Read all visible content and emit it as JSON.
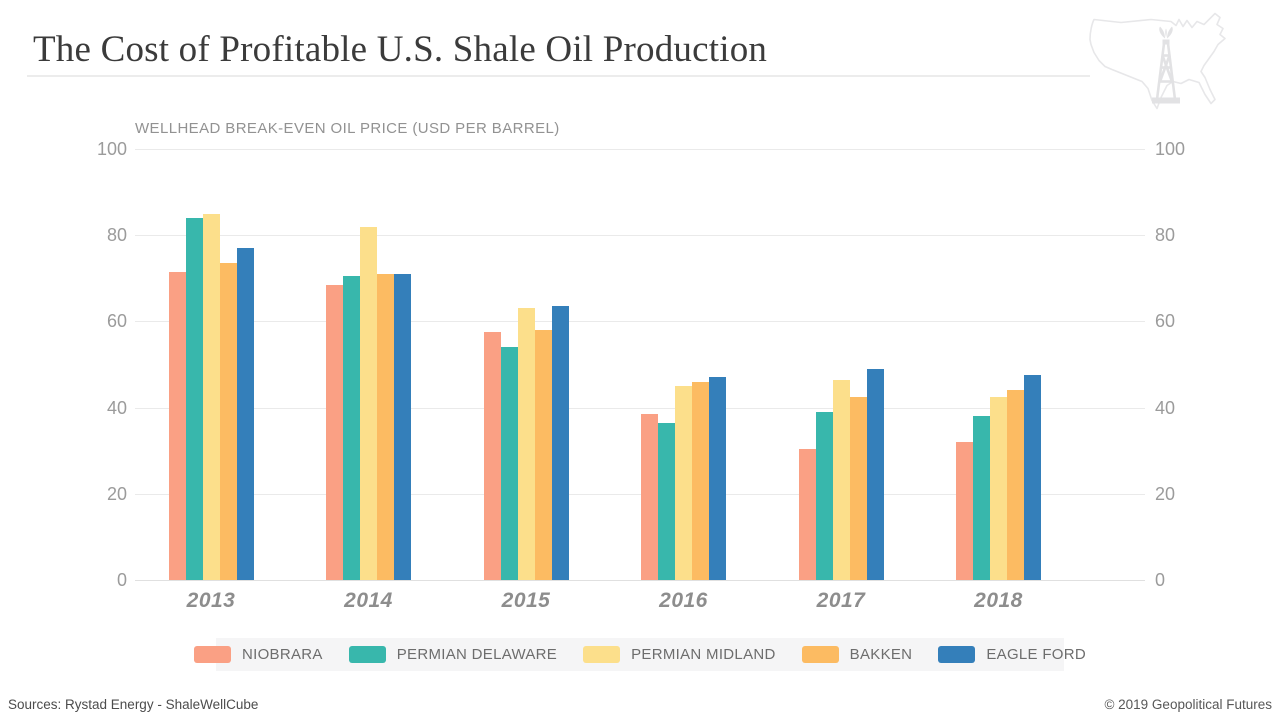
{
  "header": {
    "title": "The Cost of Profitable U.S. Shale Oil Production"
  },
  "icons": {
    "us_map": "us-map-outline-icon",
    "derrick": "oil-derrick-icon"
  },
  "chart_data": {
    "type": "bar",
    "title": "WELLHEAD BREAK-EVEN OIL PRICE (USD PER BARREL)",
    "categories": [
      "2013",
      "2014",
      "2015",
      "2016",
      "2017",
      "2018"
    ],
    "series": [
      {
        "name": "NIOBRARA",
        "color": "#FAA084",
        "values": [
          71.5,
          68.5,
          57.5,
          38.5,
          30.5,
          32
        ]
      },
      {
        "name": "PERMIAN DELAWARE",
        "color": "#38B7AC",
        "values": [
          84,
          70.5,
          54,
          36.5,
          39,
          38
        ]
      },
      {
        "name": "PERMIAN MIDLAND",
        "color": "#FCDF8B",
        "values": [
          85,
          82,
          63,
          45,
          46.5,
          42.5
        ]
      },
      {
        "name": "BAKKEN",
        "color": "#FCBB62",
        "values": [
          73.5,
          71,
          58,
          46,
          42.5,
          44
        ]
      },
      {
        "name": "EAGLE FORD",
        "color": "#347FBA",
        "values": [
          77,
          71,
          63.5,
          47,
          49,
          47.5
        ]
      }
    ],
    "yticks": [
      100,
      80,
      60,
      40,
      20,
      0
    ],
    "ylim": [
      0,
      100
    ],
    "grid": true,
    "y_axis_sides": "both",
    "legend_position": "bottom"
  },
  "footer": {
    "sources": "Sources: Rystad Energy - ShaleWellCube",
    "copyright": "© 2019 Geopolitical Futures"
  }
}
